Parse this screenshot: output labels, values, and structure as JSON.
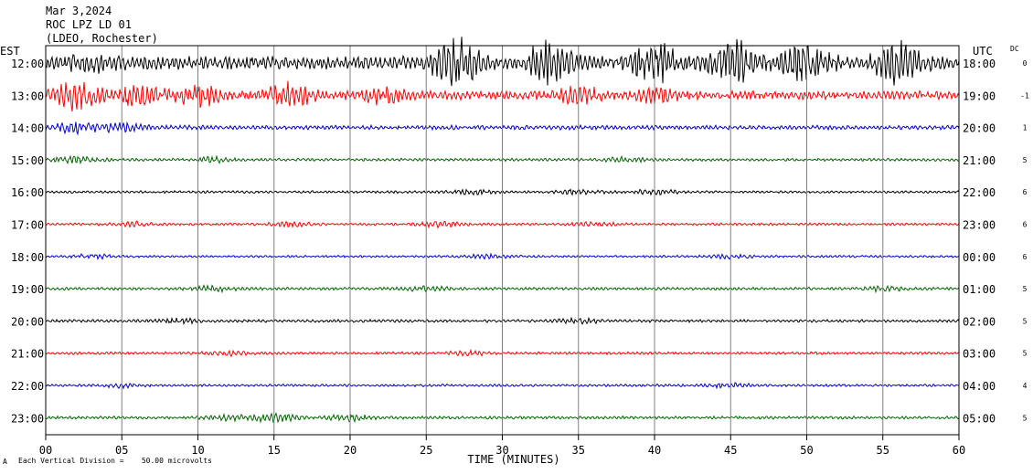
{
  "header": {
    "date": "Mar 3,2024",
    "station": "ROC LPZ LD 01",
    "network": "(LDEO, Rochester)",
    "left_zone": "EST",
    "right_zone": "UTC",
    "dc_header": "DC"
  },
  "footer": {
    "scale_note": "Each Vertical Division =    50.00 microvolts",
    "mark": "A"
  },
  "colors": {
    "black": "#000000",
    "red": "#ff0000",
    "blue": "#0000cc",
    "green": "#006600",
    "grid": "#808080"
  },
  "chart_data": {
    "type": "line",
    "title": "ROC LPZ LD 01",
    "xlabel": "TIME (MINUTES)",
    "ylabel": "",
    "xlim": [
      0,
      60
    ],
    "x_ticks": [
      "00",
      "05",
      "10",
      "15",
      "20",
      "25",
      "30",
      "35",
      "40",
      "45",
      "50",
      "55",
      "60"
    ],
    "grid": true,
    "color_cycle": [
      "black",
      "red",
      "blue",
      "green"
    ],
    "rows": [
      {
        "est": "12:00",
        "utc": "18:00",
        "dc": "0",
        "amplitude": 7.0,
        "events": [
          [
            3,
            0.9
          ],
          [
            27,
            3.2
          ],
          [
            33,
            2.6
          ],
          [
            40,
            2.5
          ],
          [
            45,
            3.0
          ],
          [
            50,
            2.4
          ],
          [
            56,
            2.8
          ]
        ]
      },
      {
        "est": "13:00",
        "utc": "19:00",
        "dc": "-1",
        "amplitude": 4.5,
        "events": [
          [
            2,
            2.8
          ],
          [
            6,
            2.5
          ],
          [
            10,
            2.0
          ],
          [
            16,
            2.5
          ],
          [
            22,
            1.5
          ],
          [
            35,
            1.6
          ],
          [
            40,
            1.3
          ]
        ]
      },
      {
        "est": "14:00",
        "utc": "20:00",
        "dc": "1",
        "amplitude": 2.3,
        "events": [
          [
            2,
            2.0
          ],
          [
            5,
            1.5
          ]
        ]
      },
      {
        "est": "15:00",
        "utc": "21:00",
        "dc": "5",
        "amplitude": 1.5,
        "events": [
          [
            2,
            2.0
          ],
          [
            11,
            1.5
          ],
          [
            38,
            1.3
          ]
        ]
      },
      {
        "est": "16:00",
        "utc": "22:00",
        "dc": "6",
        "amplitude": 1.3,
        "events": [
          [
            28,
            1.8
          ],
          [
            35,
            1.7
          ],
          [
            40,
            2.0
          ]
        ]
      },
      {
        "est": "17:00",
        "utc": "23:00",
        "dc": "6",
        "amplitude": 1.3,
        "events": [
          [
            6,
            1.6
          ],
          [
            16,
            1.6
          ],
          [
            26,
            2.0
          ],
          [
            36,
            1.5
          ]
        ]
      },
      {
        "est": "18:00",
        "utc": "00:00",
        "dc": "6",
        "amplitude": 1.2,
        "events": [
          [
            3,
            1.7
          ],
          [
            29,
            1.4
          ],
          [
            45,
            1.3
          ]
        ]
      },
      {
        "est": "19:00",
        "utc": "01:00",
        "dc": "5",
        "amplitude": 1.5,
        "events": [
          [
            11,
            1.5
          ],
          [
            25,
            1.5
          ],
          [
            55,
            1.5
          ]
        ]
      },
      {
        "est": "20:00",
        "utc": "02:00",
        "dc": "5",
        "amplitude": 1.5,
        "events": [
          [
            9,
            1.4
          ],
          [
            35,
            1.4
          ]
        ]
      },
      {
        "est": "21:00",
        "utc": "03:00",
        "dc": "5",
        "amplitude": 1.4,
        "events": [
          [
            12,
            1.5
          ],
          [
            28,
            1.4
          ]
        ]
      },
      {
        "est": "22:00",
        "utc": "04:00",
        "dc": "4",
        "amplitude": 1.3,
        "events": [
          [
            5,
            1.4
          ],
          [
            45,
            1.6
          ]
        ]
      },
      {
        "est": "23:00",
        "utc": "05:00",
        "dc": "5",
        "amplitude": 1.5,
        "events": [
          [
            12,
            1.6
          ],
          [
            15,
            2.8
          ],
          [
            20,
            1.8
          ]
        ]
      }
    ]
  }
}
